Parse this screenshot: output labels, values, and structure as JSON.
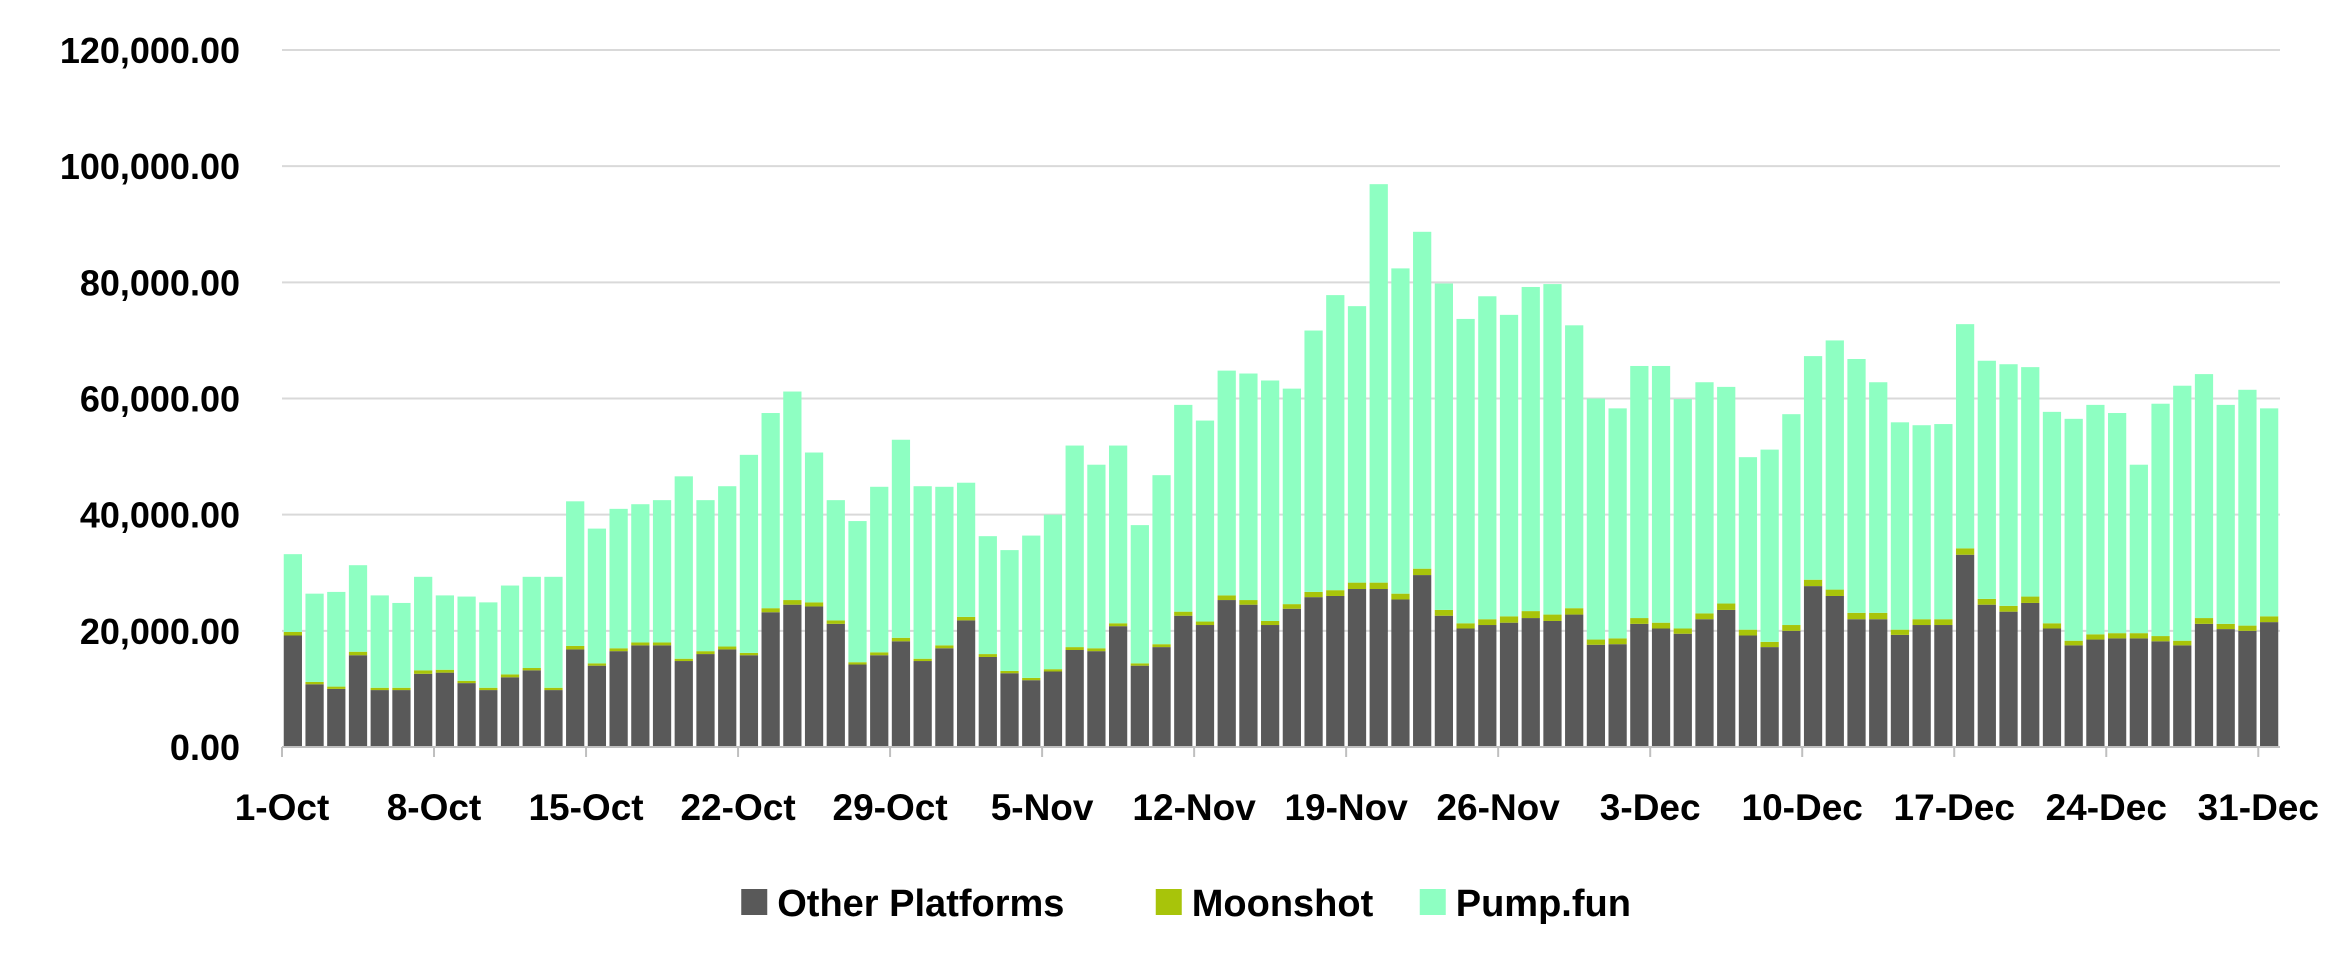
{
  "chart_data": {
    "type": "bar",
    "stacked": true,
    "ylim": [
      0,
      120000
    ],
    "yticks": [
      "0.00",
      "20,000.00",
      "40,000.00",
      "60,000.00",
      "80,000.00",
      "100,000.00",
      "120,000.00"
    ],
    "ytick_values": [
      0,
      20000,
      40000,
      60000,
      80000,
      100000,
      120000
    ],
    "grid": true,
    "legend_position": "bottom",
    "x_tick_labels": [
      "1-Oct",
      "8-Oct",
      "15-Oct",
      "22-Oct",
      "29-Oct",
      "5-Nov",
      "12-Nov",
      "19-Nov",
      "26-Nov",
      "3-Dec",
      "10-Dec",
      "17-Dec",
      "24-Dec",
      "31-Dec"
    ],
    "x_tick_every": 7,
    "series": [
      {
        "name": "Other Platforms",
        "color": "#595959",
        "values": [
          19200,
          10800,
          10000,
          15800,
          9800,
          9800,
          12600,
          12800,
          11000,
          9800,
          12000,
          13200,
          9800,
          16800,
          14000,
          16500,
          17500,
          17500,
          14800,
          16000,
          16800,
          15800,
          23200,
          24500,
          24200,
          21200,
          14200,
          15800,
          18200,
          14800,
          17000,
          21800,
          15500,
          12700,
          11500,
          13000,
          16700,
          16500,
          20800,
          14000,
          17200,
          22600,
          21000,
          25300,
          24500,
          21000,
          23800,
          25800,
          26000,
          27200,
          27200,
          25400,
          29600,
          22600,
          20400,
          21000,
          21400,
          22200,
          21700,
          22800,
          17600,
          17700,
          21200,
          20400,
          19500,
          22000,
          23600,
          19200,
          17200,
          20000,
          27700,
          26000,
          22000,
          22000,
          19300,
          21000,
          21000,
          33100,
          24500,
          23300,
          24800,
          20400,
          17500,
          18500,
          18700,
          18700,
          18200,
          17500,
          21200,
          20300,
          20000,
          21500
        ]
      },
      {
        "name": "Moonshot",
        "color": "#a8c40a",
        "values": [
          600,
          400,
          400,
          600,
          400,
          400,
          600,
          500,
          400,
          400,
          500,
          400,
          400,
          600,
          400,
          500,
          500,
          500,
          400,
          500,
          500,
          400,
          700,
          800,
          700,
          600,
          400,
          500,
          600,
          400,
          500,
          600,
          500,
          400,
          400,
          400,
          500,
          500,
          500,
          400,
          500,
          700,
          600,
          800,
          800,
          700,
          800,
          900,
          1000,
          1100,
          1100,
          1000,
          1100,
          1000,
          900,
          1000,
          1100,
          1200,
          1100,
          1100,
          900,
          1000,
          1000,
          1000,
          900,
          1000,
          1100,
          1000,
          900,
          1000,
          1100,
          1100,
          1100,
          1100,
          900,
          1000,
          1000,
          1100,
          1000,
          1000,
          1100,
          900,
          800,
          900,
          900,
          900,
          900,
          800,
          1000,
          900,
          900,
          1000
        ]
      },
      {
        "name": "Pump.fun",
        "color": "#8effc2",
        "values": [
          13400,
          15200,
          16300,
          14900,
          15900,
          14600,
          16100,
          12800,
          14500,
          14700,
          15300,
          15700,
          19100,
          24900,
          23200,
          24000,
          23800,
          24500,
          31400,
          26000,
          27600,
          34100,
          33600,
          35900,
          25800,
          20700,
          24300,
          28500,
          34100,
          29700,
          27300,
          23100,
          20300,
          20800,
          24500,
          26600,
          34700,
          31600,
          30600,
          23800,
          29100,
          35600,
          34600,
          38700,
          39000,
          41400,
          37100,
          45000,
          50800,
          47600,
          68600,
          56000,
          58000,
          56200,
          52400,
          55600,
          51900,
          55800,
          56900,
          48700,
          41500,
          39600,
          43400,
          44200,
          39500,
          39800,
          37300,
          29700,
          33100,
          36300,
          38500,
          42900,
          43700,
          39700,
          35700,
          33400,
          33600,
          38600,
          41000,
          41600,
          39500,
          36400,
          38200,
          39500,
          37900,
          29000,
          40000,
          43900,
          42000,
          37700,
          40600,
          35800
        ]
      }
    ]
  }
}
